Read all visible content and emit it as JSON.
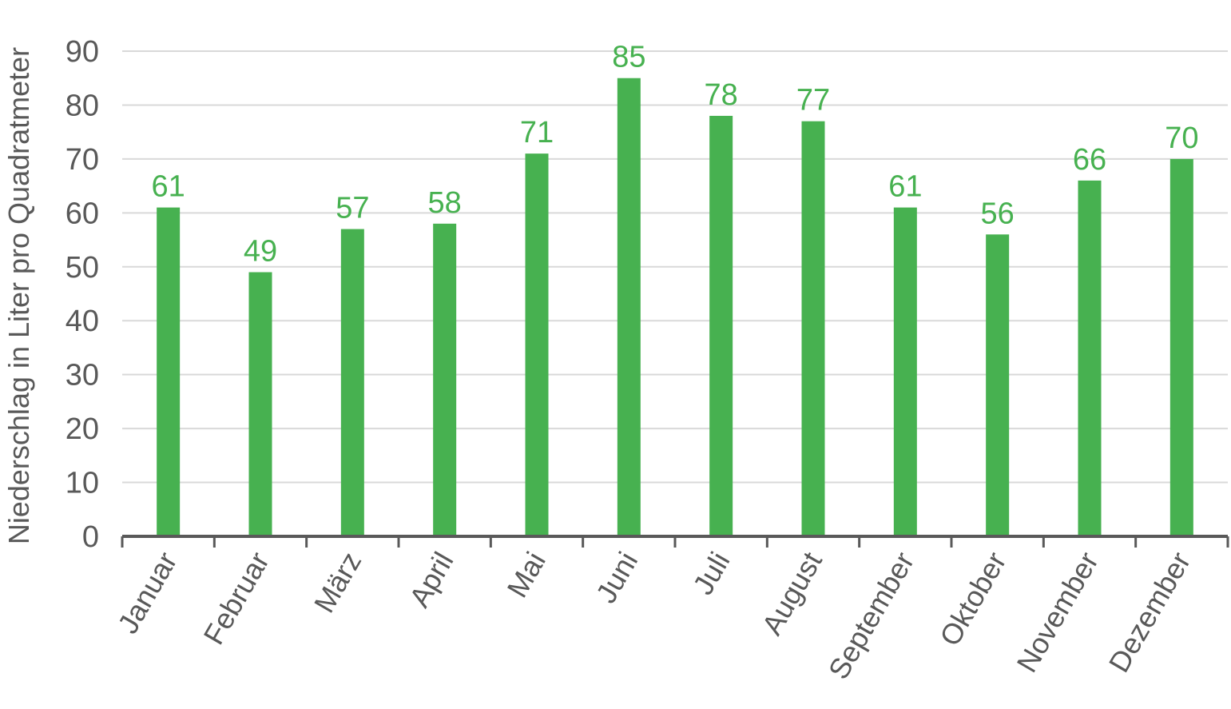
{
  "chart_data": {
    "type": "bar",
    "title": "",
    "xlabel": "",
    "ylabel": "Niederschlag in Liter pro Quadratmeter",
    "categories": [
      "Januar",
      "Februar",
      "März",
      "April",
      "Mai",
      "Juni",
      "Juli",
      "August",
      "September",
      "Oktober",
      "November",
      "Dezember"
    ],
    "values": [
      61,
      49,
      57,
      58,
      71,
      85,
      78,
      77,
      61,
      56,
      66,
      70
    ],
    "data_labels": [
      "61",
      "49",
      "57",
      "58",
      "71",
      "85",
      "78",
      "77",
      "61",
      "56",
      "66",
      "70"
    ],
    "ylim": [
      0,
      90
    ],
    "yticks": [
      0,
      10,
      20,
      30,
      40,
      50,
      60,
      70,
      80,
      90
    ],
    "ytick_labels": [
      "0",
      "10",
      "20",
      "30",
      "40",
      "50",
      "60",
      "70",
      "80",
      "90"
    ],
    "grid": true,
    "legend": "none",
    "bar_color": "#47b150",
    "label_color": "#47b150",
    "axis_color": "#595959",
    "grid_color": "#d9d9d9"
  }
}
